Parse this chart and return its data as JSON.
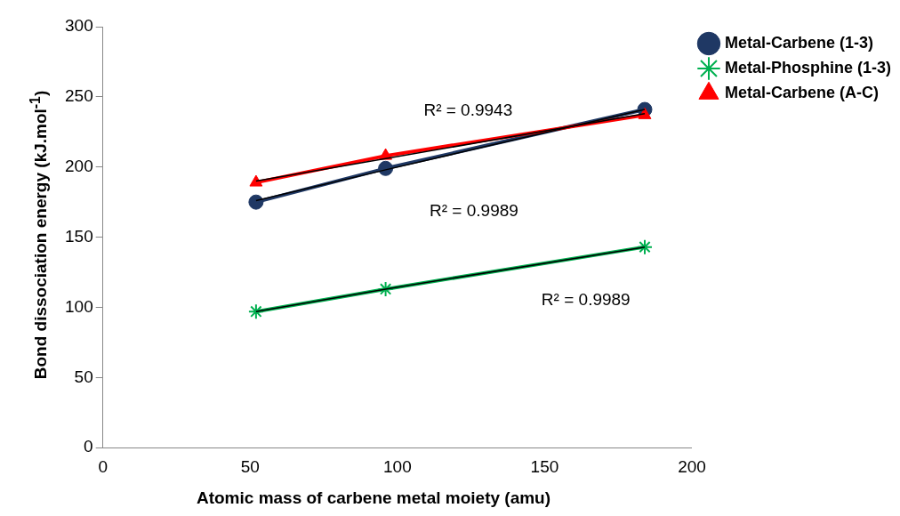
{
  "chart_data": {
    "type": "line",
    "xlabel": "Atomic mass of carbene metal moiety (amu)",
    "ylabel": "Bond dissociation energy (kJ.mol$^{-1}$)",
    "x": [
      52,
      96,
      184
    ],
    "series": [
      {
        "name": "Metal-Carbene (1-3)",
        "color": "#1f3864",
        "marker": "circle",
        "values": [
          175,
          199,
          241
        ]
      },
      {
        "name": "Metal-Phosphine (1-3)",
        "color": "#00b050",
        "marker": "cross",
        "values": [
          97,
          113,
          143
        ]
      },
      {
        "name": "Metal-Carbene (A-C)",
        "color": "#ff0000",
        "marker": "triangle",
        "values": [
          189,
          208,
          237
        ]
      },
      {
        "type": "line",
        "color": "#000000",
        "marker": "none",
        "values": [
          176,
          198,
          241
        ]
      },
      {
        "type": "line",
        "color": "#000000",
        "marker": "none",
        "values": [
          97,
          113,
          143
        ]
      },
      {
        "type": "line",
        "color": "#000000",
        "marker": "none",
        "values": [
          190,
          206,
          238
        ]
      }
    ],
    "xlim": [
      0,
      200
    ],
    "xticks": [
      0,
      50,
      100,
      150,
      200
    ],
    "ylim": [
      0,
      300
    ],
    "yticks": [
      0,
      50,
      100,
      150,
      200,
      250,
      300
    ],
    "grid": false,
    "legend": "right",
    "annotations": [
      "R² = 0.9943",
      "R² = 0.9989",
      "R² = 0.9989"
    ]
  }
}
